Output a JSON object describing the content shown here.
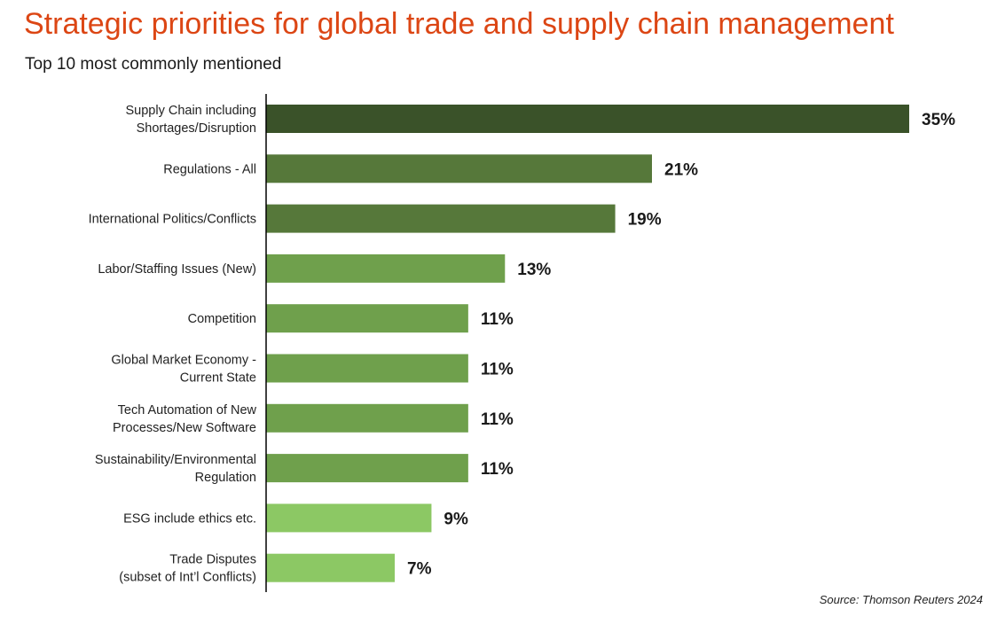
{
  "chart_data": {
    "type": "bar",
    "orientation": "horizontal",
    "title": "Strategic priorities for global trade and supply chain management",
    "subtitle": "Top 10 most commonly mentioned",
    "source": "Source: Thomson Reuters 2024",
    "categories": [
      [
        "Supply Chain including",
        "Shortages/Disruption"
      ],
      [
        "Regulations - All"
      ],
      [
        "International Politics/Conflicts"
      ],
      [
        "Labor/Staffing Issues (New)"
      ],
      [
        "Competition"
      ],
      [
        "Global Market Economy -",
        "Current State"
      ],
      [
        "Tech Automation of New",
        "Processes/New Software"
      ],
      [
        "Sustainability/Environmental",
        "Regulation"
      ],
      [
        "ESG include ethics etc."
      ],
      [
        "Trade Disputes",
        "(subset of Int’l Conflicts)"
      ]
    ],
    "values": [
      35,
      21,
      19,
      13,
      11,
      11,
      11,
      11,
      9,
      7
    ],
    "value_labels": [
      "35%",
      "21%",
      "19%",
      "13%",
      "11%",
      "11%",
      "11%",
      "11%",
      "9%",
      "7%"
    ],
    "colors": [
      "#3a5229",
      "#56783a",
      "#56783a",
      "#6fa04c",
      "#6fa04c",
      "#6fa04c",
      "#6fa04c",
      "#6fa04c",
      "#8cc864",
      "#8cc864"
    ],
    "xlim": [
      0,
      35
    ],
    "grid": false
  }
}
